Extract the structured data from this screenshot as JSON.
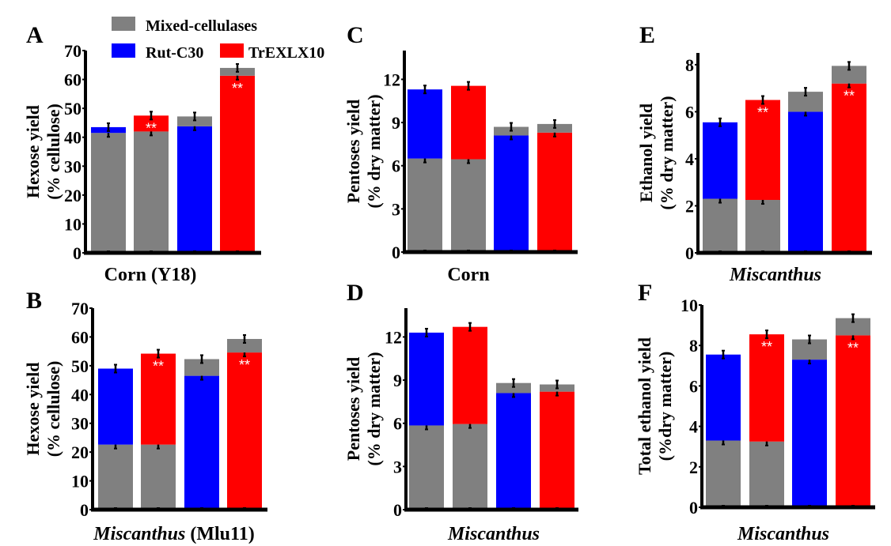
{
  "colors": {
    "mixed": "#808080",
    "rutc30": "#0000ff",
    "trexlx10": "#ff0000",
    "axis": "#000000",
    "sig": "#ffffff"
  },
  "legend": {
    "items": [
      {
        "key": "mixed",
        "label": "Mixed-cellulases"
      },
      {
        "key": "rutc30",
        "label": "Rut-C30"
      },
      {
        "key": "trexlx10",
        "label": "TrEXLX10"
      }
    ],
    "placement": "top-left"
  },
  "chart_data": [
    {
      "panel": "A",
      "type": "bar",
      "stacked": true,
      "ylabel_line1": "Hexose yield",
      "ylabel_line2": "(% cellulose)",
      "xlabel_parts": [
        {
          "text": "Corn (Y18)",
          "italic": false
        }
      ],
      "ylim": [
        0,
        70
      ],
      "yticks": [
        0,
        10,
        20,
        30,
        40,
        50,
        60,
        70
      ],
      "bars": [
        {
          "segments": [
            {
              "key": "mixed",
              "value": 41.5
            },
            {
              "key": "rutc30",
              "value": 43.5
            }
          ],
          "sig": ""
        },
        {
          "segments": [
            {
              "key": "mixed",
              "value": 42.0
            },
            {
              "key": "trexlx10",
              "value": 47.5
            }
          ],
          "sig": "**"
        },
        {
          "segments": [
            {
              "key": "rutc30",
              "value": 43.8
            },
            {
              "key": "mixed",
              "value": 47.2
            }
          ],
          "sig": ""
        },
        {
          "segments": [
            {
              "key": "trexlx10",
              "value": 61.3
            },
            {
              "key": "mixed",
              "value": 64.0
            }
          ],
          "sig": "**"
        }
      ]
    },
    {
      "panel": "B",
      "type": "bar",
      "stacked": true,
      "ylabel_line1": "Hexose yield",
      "ylabel_line2": "(% cellulose)",
      "xlabel_parts": [
        {
          "text": "Miscanthus",
          "italic": true
        },
        {
          "text": " (Mlu11)",
          "italic": false
        }
      ],
      "ylim": [
        0,
        70
      ],
      "yticks": [
        0,
        10,
        20,
        30,
        40,
        50,
        60,
        70
      ],
      "bars": [
        {
          "segments": [
            {
              "key": "mixed",
              "value": 22.6
            },
            {
              "key": "rutc30",
              "value": 49.0
            }
          ],
          "sig": ""
        },
        {
          "segments": [
            {
              "key": "mixed",
              "value": 22.6
            },
            {
              "key": "trexlx10",
              "value": 54.2
            }
          ],
          "sig": "**"
        },
        {
          "segments": [
            {
              "key": "rutc30",
              "value": 46.5
            },
            {
              "key": "mixed",
              "value": 52.3
            }
          ],
          "sig": ""
        },
        {
          "segments": [
            {
              "key": "trexlx10",
              "value": 54.6
            },
            {
              "key": "mixed",
              "value": 59.3
            }
          ],
          "sig": "**"
        }
      ]
    },
    {
      "panel": "C",
      "type": "bar",
      "stacked": true,
      "ylabel_line1": "Pentoses yield",
      "ylabel_line2": "(% dry matter)",
      "xlabel_parts": [
        {
          "text": "Corn",
          "italic": false
        }
      ],
      "ylim": [
        0,
        14
      ],
      "yticks": [
        0,
        3,
        6,
        9,
        12
      ],
      "bars": [
        {
          "segments": [
            {
              "key": "mixed",
              "value": 6.5
            },
            {
              "key": "rutc30",
              "value": 11.3
            }
          ],
          "sig": ""
        },
        {
          "segments": [
            {
              "key": "mixed",
              "value": 6.45
            },
            {
              "key": "trexlx10",
              "value": 11.55
            }
          ],
          "sig": ""
        },
        {
          "segments": [
            {
              "key": "rutc30",
              "value": 8.1
            },
            {
              "key": "mixed",
              "value": 8.7
            }
          ],
          "sig": ""
        },
        {
          "segments": [
            {
              "key": "trexlx10",
              "value": 8.3
            },
            {
              "key": "mixed",
              "value": 8.9
            }
          ],
          "sig": ""
        }
      ]
    },
    {
      "panel": "D",
      "type": "bar",
      "stacked": true,
      "ylabel_line1": "Pentoses yield",
      "ylabel_line2": "(% dry matter)",
      "xlabel_parts": [
        {
          "text": "Miscanthus",
          "italic": true
        }
      ],
      "ylim": [
        0,
        14
      ],
      "yticks": [
        0,
        3,
        6,
        9,
        12
      ],
      "bars": [
        {
          "segments": [
            {
              "key": "mixed",
              "value": 5.85
            },
            {
              "key": "rutc30",
              "value": 12.3
            }
          ],
          "sig": ""
        },
        {
          "segments": [
            {
              "key": "mixed",
              "value": 5.95
            },
            {
              "key": "trexlx10",
              "value": 12.7
            }
          ],
          "sig": ""
        },
        {
          "segments": [
            {
              "key": "rutc30",
              "value": 8.1
            },
            {
              "key": "mixed",
              "value": 8.8
            }
          ],
          "sig": ""
        },
        {
          "segments": [
            {
              "key": "trexlx10",
              "value": 8.2
            },
            {
              "key": "mixed",
              "value": 8.7
            }
          ],
          "sig": ""
        }
      ]
    },
    {
      "panel": "E",
      "type": "bar",
      "stacked": true,
      "ylabel_line1": "Ethanol yield",
      "ylabel_line2": "(% dry matter)",
      "xlabel_parts": [
        {
          "text": "Miscanthus",
          "italic": true
        }
      ],
      "ylim": [
        0,
        8.5
      ],
      "yticks": [
        0,
        2,
        4,
        6,
        8
      ],
      "bars": [
        {
          "segments": [
            {
              "key": "mixed",
              "value": 2.3
            },
            {
              "key": "rutc30",
              "value": 5.55
            }
          ],
          "sig": ""
        },
        {
          "segments": [
            {
              "key": "mixed",
              "value": 2.25
            },
            {
              "key": "trexlx10",
              "value": 6.5
            }
          ],
          "sig": "**"
        },
        {
          "segments": [
            {
              "key": "rutc30",
              "value": 6.0
            },
            {
              "key": "mixed",
              "value": 6.85
            }
          ],
          "sig": ""
        },
        {
          "segments": [
            {
              "key": "trexlx10",
              "value": 7.2
            },
            {
              "key": "mixed",
              "value": 7.95
            }
          ],
          "sig": "**"
        }
      ]
    },
    {
      "panel": "F",
      "type": "bar",
      "stacked": true,
      "ylabel_line1": "Total ethanol yield",
      "ylabel_line2": "(%dry matter)",
      "xlabel_parts": [
        {
          "text": "Miscanthus",
          "italic": true
        }
      ],
      "ylim": [
        0,
        10
      ],
      "yticks": [
        0,
        2,
        4,
        6,
        8,
        10
      ],
      "bars": [
        {
          "segments": [
            {
              "key": "mixed",
              "value": 3.3
            },
            {
              "key": "rutc30",
              "value": 7.55
            }
          ],
          "sig": ""
        },
        {
          "segments": [
            {
              "key": "mixed",
              "value": 3.25
            },
            {
              "key": "trexlx10",
              "value": 8.55
            }
          ],
          "sig": "**"
        },
        {
          "segments": [
            {
              "key": "rutc30",
              "value": 7.3
            },
            {
              "key": "mixed",
              "value": 8.3
            }
          ],
          "sig": ""
        },
        {
          "segments": [
            {
              "key": "trexlx10",
              "value": 8.5
            },
            {
              "key": "mixed",
              "value": 9.35
            }
          ],
          "sig": "**"
        }
      ]
    }
  ]
}
